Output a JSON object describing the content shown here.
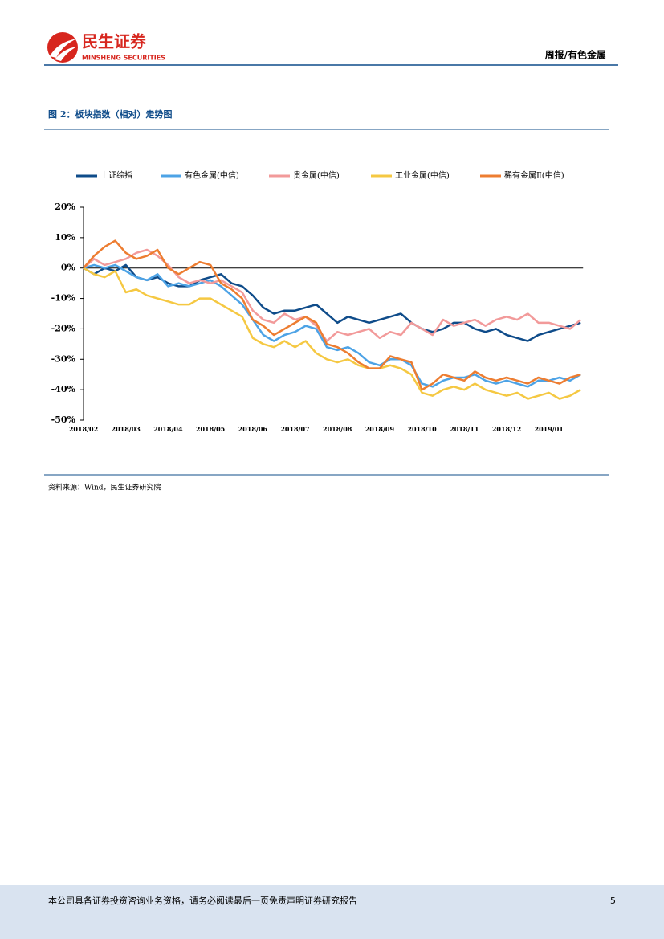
{
  "header": {
    "brand": "民生证券",
    "brand_en": "MINSHENG SECURITIES",
    "report": "周报/有色金属"
  },
  "figure_title": "图 2：板块指数（相对）走势图",
  "chart_data": {
    "type": "line",
    "categories": [
      "2018/02",
      null,
      null,
      null,
      "2018/03",
      null,
      null,
      null,
      "2018/04",
      null,
      null,
      null,
      "2018/05",
      null,
      null,
      null,
      "2018/06",
      null,
      null,
      null,
      "2018/07",
      null,
      null,
      null,
      "2018/08",
      null,
      null,
      null,
      "2018/09",
      null,
      null,
      null,
      "2018/10",
      null,
      null,
      null,
      "2018/11",
      null,
      null,
      null,
      "2018/12",
      null,
      null,
      null,
      "2019/01",
      null,
      null,
      null
    ],
    "series": [
      {
        "name": "上证综指",
        "color": "#0f4c8a",
        "values": [
          0,
          -2,
          0,
          -1,
          1,
          -3,
          -4,
          -3,
          -5,
          -6,
          -6,
          -4,
          -3,
          -2,
          -5,
          -6,
          -9,
          -13,
          -15,
          -14,
          -14,
          -13,
          -12,
          -15,
          -18,
          -16,
          -17,
          -18,
          -17,
          -16,
          -15,
          -18,
          -20,
          -21,
          -20,
          -18,
          -18,
          -20,
          -21,
          -20,
          -22,
          -23,
          -24,
          -22,
          -21,
          -20,
          -19,
          -18
        ]
      },
      {
        "name": "有色金属(中信)",
        "color": "#4da3e6",
        "values": [
          0,
          1,
          0,
          1,
          -1,
          -3,
          -4,
          -2,
          -6,
          -5,
          -6,
          -5,
          -4,
          -6,
          -9,
          -12,
          -17,
          -22,
          -24,
          -22,
          -21,
          -19,
          -20,
          -26,
          -27,
          -26,
          -28,
          -31,
          -32,
          -30,
          -30,
          -32,
          -38,
          -39,
          -37,
          -36,
          -36,
          -35,
          -37,
          -38,
          -37,
          -38,
          -39,
          -37,
          -37,
          -36,
          -37,
          -35
        ]
      },
      {
        "name": "贵金属(中信)",
        "color": "#f29a9a",
        "values": [
          0,
          3,
          1,
          2,
          3,
          5,
          6,
          4,
          1,
          -3,
          -5,
          -4,
          -5,
          -4,
          -6,
          -8,
          -14,
          -17,
          -18,
          -15,
          -17,
          -16,
          -19,
          -24,
          -21,
          -22,
          -21,
          -20,
          -23,
          -21,
          -22,
          -18,
          -20,
          -22,
          -17,
          -19,
          -18,
          -17,
          -19,
          -17,
          -16,
          -17,
          -15,
          -18,
          -18,
          -19,
          -20,
          -17
        ]
      },
      {
        "name": "工业金属(中信)",
        "color": "#f5c842",
        "values": [
          0,
          -2,
          -3,
          -1,
          -8,
          -7,
          -9,
          -10,
          -11,
          -12,
          -12,
          -10,
          -10,
          -12,
          -14,
          -16,
          -23,
          -25,
          -26,
          -24,
          -26,
          -24,
          -28,
          -30,
          -31,
          -30,
          -32,
          -33,
          -33,
          -32,
          -33,
          -35,
          -41,
          -42,
          -40,
          -39,
          -40,
          -38,
          -40,
          -41,
          -42,
          -41,
          -43,
          -42,
          -41,
          -43,
          -42,
          -40
        ]
      },
      {
        "name": "稀有金属Ⅱ(中信)",
        "color": "#ed7d31",
        "values": [
          0,
          4,
          7,
          9,
          5,
          3,
          4,
          6,
          0,
          -2,
          0,
          2,
          1,
          -5,
          -7,
          -10,
          -17,
          -19,
          -22,
          -20,
          -18,
          -16,
          -18,
          -25,
          -26,
          -28,
          -31,
          -33,
          -33,
          -29,
          -30,
          -31,
          -40,
          -38,
          -35,
          -36,
          -37,
          -34,
          -36,
          -37,
          -36,
          -37,
          -38,
          -36,
          -37,
          -38,
          -36,
          -35
        ]
      }
    ],
    "ylim": [
      -50,
      20
    ],
    "yticks": [
      {
        "value": 20,
        "label": "20%"
      },
      {
        "value": 10,
        "label": "10%"
      },
      {
        "value": 0,
        "label": "0%"
      },
      {
        "value": -10,
        "label": "-10%"
      },
      {
        "value": -20,
        "label": "-20%"
      },
      {
        "value": -30,
        "label": "-30%"
      },
      {
        "value": -40,
        "label": "-40%"
      },
      {
        "value": -50,
        "label": "-50%"
      }
    ],
    "legend": "top"
  },
  "source": "资料来源：Wind，民生证券研究院",
  "footer": {
    "disclaimer": "本公司具备证券投资咨询业务资格，请务必阅读最后一页免责声明证券研究报告",
    "page": "5"
  }
}
